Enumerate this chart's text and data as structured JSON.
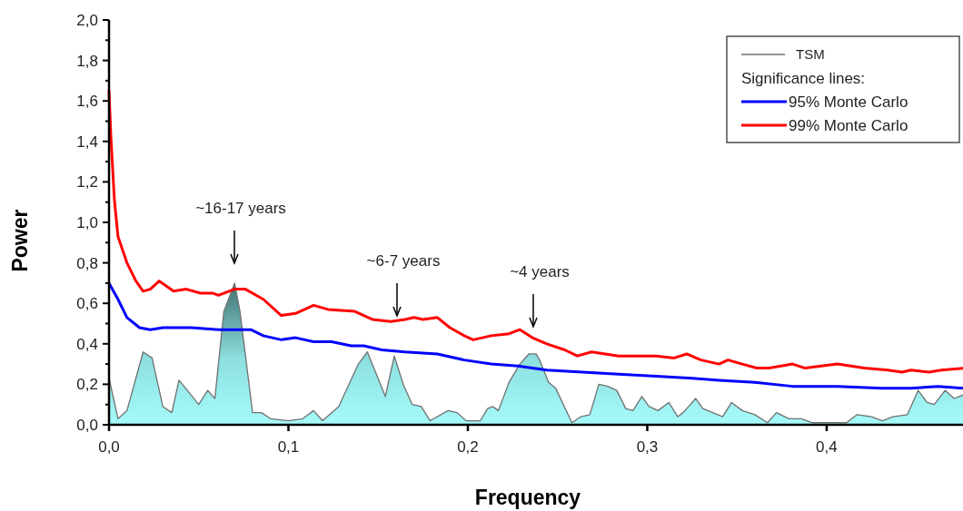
{
  "chart_data": {
    "type": "line",
    "xlabel": "Frequency",
    "ylabel": "Power",
    "legend_title": "Significance lines:",
    "legend": "top right",
    "grid": false,
    "xlim": [
      0,
      0.477
    ],
    "ylim": [
      0,
      2
    ],
    "xticks": [
      {
        "value": 0,
        "label": "0,0"
      },
      {
        "value": 0.1,
        "label": "0,1"
      },
      {
        "value": 0.2,
        "label": "0,2"
      },
      {
        "value": 0.3,
        "label": "0,3"
      },
      {
        "value": 0.4,
        "label": "0,4"
      }
    ],
    "yticks": [
      {
        "value": 0,
        "label": "0,0"
      },
      {
        "value": 0.1,
        "label": null
      },
      {
        "value": 0.2,
        "label": "0,2"
      },
      {
        "value": 0.3,
        "label": null
      },
      {
        "value": 0.4,
        "label": "0,4"
      },
      {
        "value": 0.5,
        "label": null
      },
      {
        "value": 0.6,
        "label": "0,6"
      },
      {
        "value": 0.7,
        "label": null
      },
      {
        "value": 0.8,
        "label": "0,8"
      },
      {
        "value": 0.9,
        "label": null
      },
      {
        "value": 1.0,
        "label": "1,0"
      },
      {
        "value": 1.1,
        "label": null
      },
      {
        "value": 1.2,
        "label": "1,2"
      },
      {
        "value": 1.3,
        "label": null
      },
      {
        "value": 1.4,
        "label": "1,4"
      },
      {
        "value": 1.5,
        "label": null
      },
      {
        "value": 1.6,
        "label": "1,6"
      },
      {
        "value": 1.7,
        "label": null
      },
      {
        "value": 1.8,
        "label": "1,8"
      },
      {
        "value": 1.9,
        "label": null
      },
      {
        "value": 2.0,
        "label": "2,0"
      }
    ],
    "series": [
      {
        "name": "TSM",
        "type": "area",
        "color": "#707070",
        "x": [
          0,
          0.005,
          0.01,
          0.019,
          0.024,
          0.03,
          0.035,
          0.039,
          0.05,
          0.055,
          0.059,
          0.064,
          0.07,
          0.073,
          0.08,
          0.085,
          0.09,
          0.1,
          0.108,
          0.114,
          0.119,
          0.128,
          0.139,
          0.144,
          0.154,
          0.159,
          0.164,
          0.169,
          0.174,
          0.179,
          0.189,
          0.194,
          0.199,
          0.207,
          0.211,
          0.214,
          0.217,
          0.223,
          0.229,
          0.234,
          0.238,
          0.24,
          0.245,
          0.249,
          0.258,
          0.263,
          0.268,
          0.273,
          0.278,
          0.283,
          0.288,
          0.292,
          0.297,
          0.301,
          0.306,
          0.312,
          0.317,
          0.32,
          0.327,
          0.331,
          0.342,
          0.347,
          0.353,
          0.36,
          0.367,
          0.372,
          0.379,
          0.386,
          0.392,
          0.399,
          0.406,
          0.411,
          0.417,
          0.425,
          0.431,
          0.437,
          0.445,
          0.451,
          0.456,
          0.46,
          0.466,
          0.471,
          0.477
        ],
        "values": [
          0.23,
          0.03,
          0.07,
          0.36,
          0.33,
          0.09,
          0.06,
          0.22,
          0.1,
          0.17,
          0.13,
          0.56,
          0.7,
          0.56,
          0.06,
          0.06,
          0.03,
          0.02,
          0.03,
          0.07,
          0.02,
          0.09,
          0.3,
          0.36,
          0.14,
          0.34,
          0.2,
          0.1,
          0.09,
          0.02,
          0.07,
          0.06,
          0.02,
          0.02,
          0.08,
          0.09,
          0.07,
          0.21,
          0.3,
          0.35,
          0.35,
          0.32,
          0.21,
          0.18,
          0.01,
          0.04,
          0.05,
          0.2,
          0.19,
          0.17,
          0.08,
          0.07,
          0.14,
          0.09,
          0.07,
          0.11,
          0.04,
          0.06,
          0.13,
          0.08,
          0.04,
          0.11,
          0.07,
          0.05,
          0.01,
          0.06,
          0.03,
          0.03,
          0.01,
          0.01,
          0.01,
          0.01,
          0.05,
          0.04,
          0.02,
          0.04,
          0.05,
          0.17,
          0.11,
          0.1,
          0.17,
          0.13,
          0.15
        ]
      },
      {
        "name": "95% Monte Carlo",
        "color": "#0000ff",
        "x": [
          0,
          0.005,
          0.01,
          0.017,
          0.023,
          0.03,
          0.046,
          0.061,
          0.07,
          0.079,
          0.086,
          0.096,
          0.104,
          0.114,
          0.124,
          0.135,
          0.142,
          0.152,
          0.165,
          0.183,
          0.198,
          0.213,
          0.228,
          0.244,
          0.264,
          0.284,
          0.305,
          0.325,
          0.34,
          0.36,
          0.381,
          0.406,
          0.431,
          0.447,
          0.462,
          0.477
        ],
        "values": [
          0.7,
          0.62,
          0.53,
          0.48,
          0.47,
          0.48,
          0.48,
          0.47,
          0.47,
          0.47,
          0.44,
          0.42,
          0.43,
          0.41,
          0.41,
          0.39,
          0.39,
          0.37,
          0.36,
          0.35,
          0.32,
          0.3,
          0.29,
          0.27,
          0.26,
          0.25,
          0.24,
          0.23,
          0.22,
          0.21,
          0.19,
          0.19,
          0.18,
          0.18,
          0.19,
          0.18
        ]
      },
      {
        "name": "99% Monte Carlo",
        "color": "#ff0000",
        "x": [
          0,
          0.001,
          0.003,
          0.005,
          0.01,
          0.015,
          0.019,
          0.023,
          0.028,
          0.036,
          0.043,
          0.051,
          0.058,
          0.061,
          0.07,
          0.076,
          0.086,
          0.096,
          0.104,
          0.114,
          0.122,
          0.137,
          0.147,
          0.157,
          0.165,
          0.17,
          0.175,
          0.183,
          0.19,
          0.198,
          0.203,
          0.213,
          0.223,
          0.229,
          0.236,
          0.244,
          0.254,
          0.261,
          0.269,
          0.284,
          0.294,
          0.305,
          0.315,
          0.322,
          0.33,
          0.34,
          0.345,
          0.353,
          0.361,
          0.368,
          0.381,
          0.388,
          0.406,
          0.421,
          0.434,
          0.442,
          0.447,
          0.457,
          0.464,
          0.477
        ],
        "values": [
          1.65,
          1.43,
          1.11,
          0.93,
          0.8,
          0.71,
          0.66,
          0.67,
          0.71,
          0.66,
          0.67,
          0.65,
          0.65,
          0.64,
          0.67,
          0.67,
          0.62,
          0.54,
          0.55,
          0.59,
          0.57,
          0.56,
          0.52,
          0.51,
          0.52,
          0.53,
          0.52,
          0.53,
          0.48,
          0.44,
          0.42,
          0.44,
          0.45,
          0.47,
          0.43,
          0.4,
          0.37,
          0.34,
          0.36,
          0.34,
          0.34,
          0.34,
          0.33,
          0.35,
          0.32,
          0.3,
          0.32,
          0.3,
          0.28,
          0.28,
          0.3,
          0.28,
          0.3,
          0.28,
          0.27,
          0.26,
          0.27,
          0.26,
          0.27,
          0.28
        ]
      }
    ],
    "annotations": [
      "~16-17 years",
      "~6-7 years",
      "~4 years"
    ]
  }
}
